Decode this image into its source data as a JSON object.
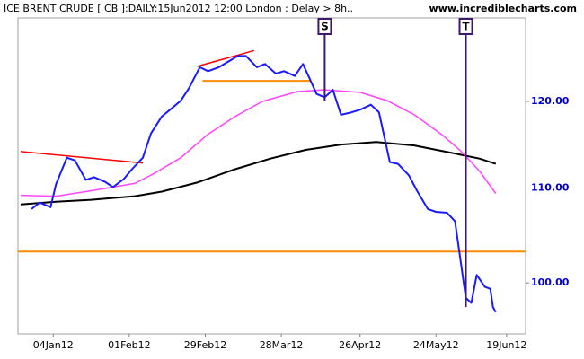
{
  "chart_data": {
    "type": "line",
    "title": "ICE BRENT CRUDE [ CB ]:DAILY:15Jun2012 12:00 London : Delay > 8h..",
    "subtitle": "www.incrediblecharts.com",
    "xlim": [
      "2011-12-22",
      "2012-06-26"
    ],
    "xticks": [
      {
        "value": "2012-01-04",
        "label": "04Jan12"
      },
      {
        "value": "2012-02-01",
        "label": "01Feb12"
      },
      {
        "value": "2012-02-29",
        "label": "29Feb12"
      },
      {
        "value": "2012-03-28",
        "label": "28Mar12"
      },
      {
        "value": "2012-04-26",
        "label": "26Apr12"
      },
      {
        "value": "2012-05-24",
        "label": "24May12"
      },
      {
        "value": "2012-06-19",
        "label": "19Jun12"
      }
    ],
    "ylim": [
      95,
      130.5
    ],
    "log_scale": true,
    "yticks": [
      {
        "value": 100,
        "label": "100.00"
      },
      {
        "value": 110,
        "label": "110.00"
      },
      {
        "value": 120,
        "label": "120.00"
      }
    ],
    "series": [
      {
        "color": "#ff8c00",
        "width": 2,
        "x": [
          "2011-12-22",
          "2012-06-26"
        ],
        "values": [
          103.2,
          103.2
        ]
      },
      {
        "color": "#000000",
        "width": 2,
        "x": [
          "2011-12-23",
          "2012-01-05",
          "2012-01-18",
          "2012-02-03",
          "2012-02-13",
          "2012-02-26",
          "2012-03-11",
          "2012-03-24",
          "2012-04-06",
          "2012-04-19",
          "2012-05-02",
          "2012-05-16",
          "2012-05-29",
          "2012-06-09",
          "2012-06-15"
        ],
        "values": [
          108.2,
          108.5,
          108.7,
          109.1,
          109.6,
          110.6,
          112.1,
          113.3,
          114.3,
          114.9,
          115.2,
          114.8,
          114.0,
          113.3,
          112.7
        ]
      },
      {
        "color": "#ff44ff",
        "width": 1.5,
        "x": [
          "2011-12-23",
          "2012-01-05",
          "2012-01-18",
          "2012-02-03",
          "2012-02-10",
          "2012-02-20",
          "2012-03-01",
          "2012-03-11",
          "2012-03-21",
          "2012-04-03",
          "2012-04-13",
          "2012-04-26",
          "2012-05-06",
          "2012-05-16",
          "2012-05-26",
          "2012-06-02",
          "2012-06-09",
          "2012-06-15"
        ],
        "values": [
          109.2,
          109.1,
          109.7,
          110.5,
          111.6,
          113.4,
          116.1,
          118.2,
          120.0,
          121.2,
          121.4,
          121.1,
          120.1,
          118.4,
          116.1,
          114.2,
          111.9,
          109.4
        ]
      },
      {
        "color": "#ff0000",
        "width": 1.5,
        "x": [
          "2011-12-23",
          "2012-02-06"
        ],
        "values": [
          114.1,
          112.8
        ]
      },
      {
        "color": "#ff0000",
        "width": 1.5,
        "x": [
          "2012-02-26",
          "2012-03-18"
        ],
        "values": [
          124.3,
          126.3
        ]
      },
      {
        "color": "#ff8c00",
        "width": 2,
        "x": [
          "2012-02-28",
          "2012-04-08"
        ],
        "values": [
          122.5,
          122.5
        ]
      },
      {
        "color": "#1a1aff",
        "width": 2,
        "x": [
          "2011-12-27",
          "2011-12-30",
          "2012-01-03",
          "2012-01-05",
          "2012-01-09",
          "2012-01-12",
          "2012-01-16",
          "2012-01-19",
          "2012-01-23",
          "2012-01-26",
          "2012-01-30",
          "2012-02-02",
          "2012-02-06",
          "2012-02-09",
          "2012-02-13",
          "2012-02-16",
          "2012-02-20",
          "2012-02-23",
          "2012-02-27",
          "2012-03-01",
          "2012-03-05",
          "2012-03-08",
          "2012-03-12",
          "2012-03-15",
          "2012-03-19",
          "2012-03-22",
          "2012-03-26",
          "2012-03-29",
          "2012-04-02",
          "2012-04-05",
          "2012-04-10",
          "2012-04-13",
          "2012-04-16",
          "2012-04-19",
          "2012-04-23",
          "2012-04-26",
          "2012-04-30",
          "2012-05-03",
          "2012-05-07",
          "2012-05-10",
          "2012-05-14",
          "2012-05-17",
          "2012-05-21",
          "2012-05-24",
          "2012-05-28",
          "2012-05-31",
          "2012-06-04",
          "2012-06-06",
          "2012-06-08",
          "2012-06-11",
          "2012-06-13",
          "2012-06-14",
          "2012-06-15"
        ],
        "values": [
          107.7,
          108.4,
          107.9,
          110.4,
          113.4,
          113.1,
          110.9,
          111.2,
          110.7,
          110.1,
          111.0,
          112.1,
          113.4,
          116.2,
          118.2,
          119.0,
          120.1,
          121.6,
          124.2,
          123.7,
          124.2,
          124.8,
          125.6,
          125.6,
          124.2,
          124.6,
          123.4,
          123.7,
          123.1,
          124.6,
          120.9,
          120.5,
          121.4,
          118.4,
          118.7,
          119.0,
          119.6,
          118.7,
          112.9,
          112.7,
          111.4,
          109.7,
          107.7,
          107.4,
          107.3,
          106.4,
          98.5,
          98.0,
          100.8,
          99.6,
          99.4,
          97.6,
          97.1
        ]
      }
    ],
    "annotations": [
      {
        "text": "S",
        "x": "2012-04-13",
        "y": 120.1,
        "color": "#3b1a6e"
      },
      {
        "text": "T",
        "x": "2012-06-04",
        "y": 97.6,
        "color": "#3b1a6e"
      }
    ]
  }
}
